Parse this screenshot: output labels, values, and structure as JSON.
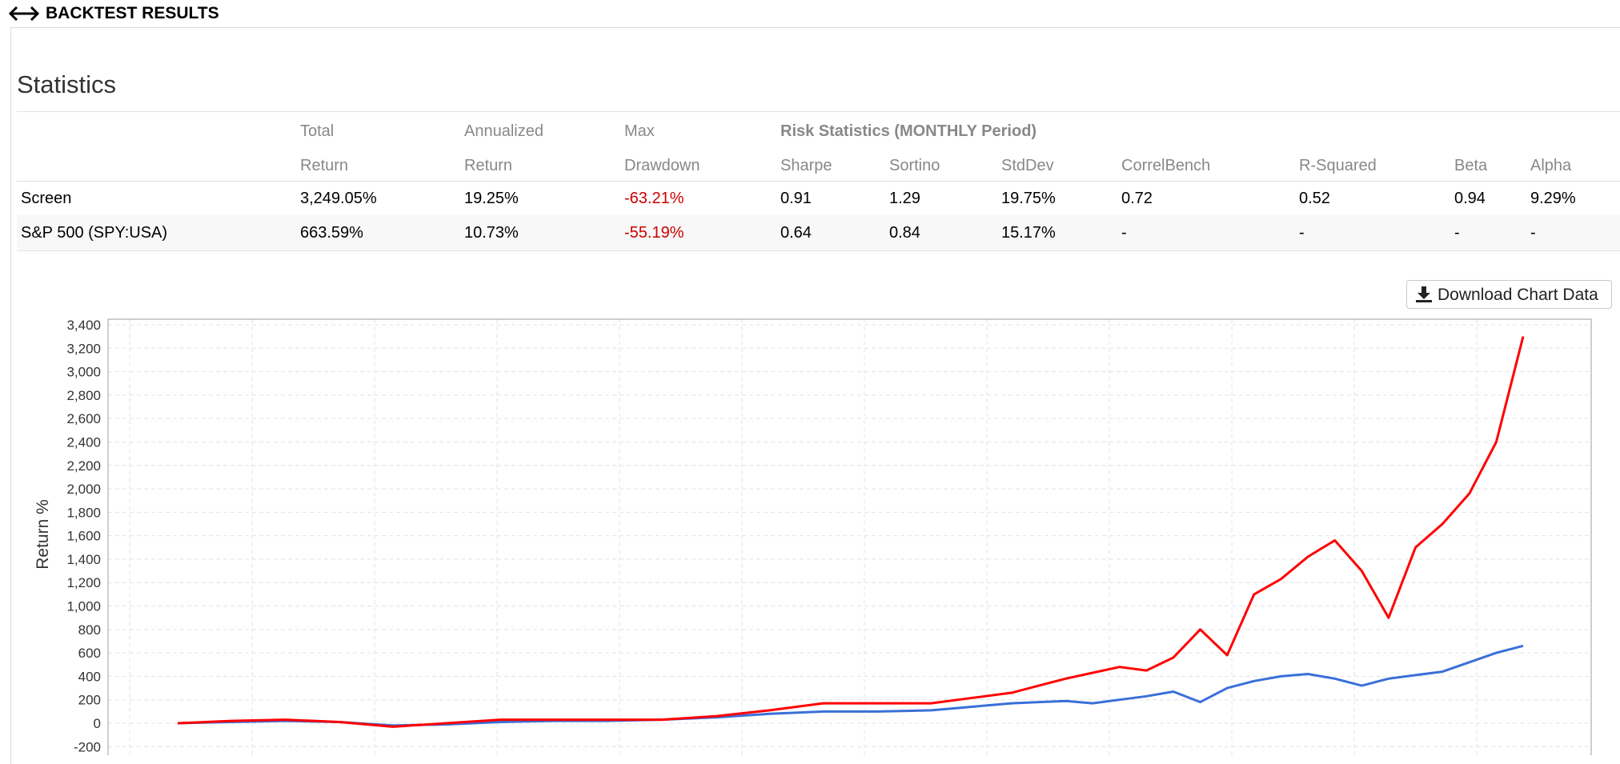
{
  "header": {
    "title": "BACKTEST RESULTS",
    "icon": "left-right-arrow-icon"
  },
  "statistics": {
    "heading": "Statistics",
    "group_header": "Risk Statistics (MONTHLY Period)",
    "columns": [
      {
        "line1": "Total",
        "line2": "Return"
      },
      {
        "line1": "Annualized",
        "line2": "Return"
      },
      {
        "line1": "Max",
        "line2": "Drawdown"
      },
      {
        "line2": "Sharpe"
      },
      {
        "line2": "Sortino"
      },
      {
        "line2": "StdDev"
      },
      {
        "line2": "CorrelBench"
      },
      {
        "line2": "R-Squared"
      },
      {
        "line2": "Beta"
      },
      {
        "line2": "Alpha"
      }
    ],
    "rows": [
      {
        "name": "Screen",
        "values": [
          "3,249.05%",
          "19.25%",
          "-63.21%",
          "0.91",
          "1.29",
          "19.75%",
          "0.72",
          "0.52",
          "0.94",
          "9.29%"
        ]
      },
      {
        "name": "S&P 500 (SPY:USA)",
        "values": [
          "663.59%",
          "10.73%",
          "-55.19%",
          "0.64",
          "0.84",
          "15.17%",
          "-",
          "-",
          "-",
          "-"
        ]
      }
    ],
    "negative_color": "#cc0000"
  },
  "download": {
    "label": "Download Chart Data",
    "icon": "download-icon"
  },
  "chart_data": {
    "type": "line",
    "ylabel": "Return %",
    "ylim": [
      -200,
      3400
    ],
    "yticks": [
      -200,
      0,
      200,
      400,
      600,
      800,
      1000,
      1200,
      1400,
      1600,
      1800,
      2000,
      2200,
      2400,
      2600,
      2800,
      3000,
      3200,
      3400
    ],
    "ytick_labels": [
      "-200",
      "0",
      "200",
      "400",
      "600",
      "800",
      "1,000",
      "1,200",
      "1,400",
      "1,600",
      "1,800",
      "2,000",
      "2,200",
      "2,400",
      "2,600",
      "2,800",
      "3,000",
      "3,200",
      "3,400"
    ],
    "grid": true,
    "x": [
      0,
      4,
      8,
      12,
      16,
      20,
      24,
      28,
      32,
      36,
      40,
      44,
      48,
      52,
      56,
      58,
      60,
      62,
      64,
      66,
      68,
      70,
      72,
      74,
      76,
      78,
      80,
      82,
      84,
      86,
      88,
      90,
      92,
      94,
      96,
      98,
      100
    ],
    "series": [
      {
        "color": "#ff0000",
        "values": [
          0,
          20,
          30,
          10,
          -30,
          0,
          30,
          30,
          30,
          30,
          60,
          110,
          170,
          170,
          170,
          200,
          230,
          260,
          320,
          380,
          430,
          480,
          450,
          560,
          800,
          580,
          1100,
          1230,
          1420,
          1560,
          1300,
          900,
          1500,
          1700,
          1960,
          2400,
          3300
        ]
      },
      {
        "color": "#3a6fd8",
        "values": [
          0,
          10,
          20,
          10,
          -20,
          -10,
          10,
          20,
          20,
          30,
          50,
          80,
          100,
          100,
          110,
          130,
          150,
          170,
          180,
          190,
          170,
          200,
          230,
          270,
          180,
          300,
          360,
          400,
          420,
          380,
          320,
          380,
          410,
          440,
          520,
          600,
          660
        ]
      }
    ]
  }
}
